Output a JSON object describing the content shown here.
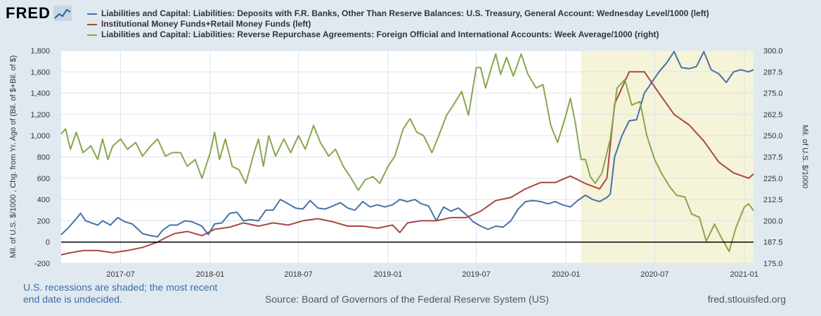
{
  "brand": {
    "logo_text": "FRED",
    "logo_icon": "line-chart-icon"
  },
  "chart_data": {
    "type": "line",
    "title": "",
    "ylabel_left": "Mil. of U.S. $/1000 , Chg. from Yr. Ago of (Bil. of $+Bil. of $)",
    "ylabel_right": "Mil. of U.S. $/1000",
    "ylim_left": [
      -200,
      1800
    ],
    "ylim_right": [
      175,
      300
    ],
    "xlim": [
      "2017-03-01",
      "2021-01-20"
    ],
    "grid": true,
    "legend_placement": "top",
    "left_ticks": [
      "-200",
      "0",
      "200",
      "400",
      "600",
      "800",
      "1,000",
      "1,200",
      "1,400",
      "1,600",
      "1,800"
    ],
    "right_ticks": [
      "175.0",
      "187.5",
      "200.0",
      "212.5",
      "225.0",
      "237.5",
      "250.0",
      "262.5",
      "275.0",
      "287.5",
      "300.0"
    ],
    "x_ticks": [
      "2017-07",
      "2018-01",
      "2018-07",
      "2019-01",
      "2019-07",
      "2020-01",
      "2020-07",
      "2021-01"
    ],
    "recession": {
      "start": "2020-02-01",
      "end": "2021-01-20"
    },
    "series": [
      {
        "name": "Liabilities and Capital: Liabilities: Deposits with F.R. Banks, Other Than Reserve Balances: U.S. Treasury, General Account: Wednesday Level/1000 (left)",
        "axis": "left",
        "color": "#4572a7",
        "points": [
          [
            "2017-03-01",
            70
          ],
          [
            "2017-03-15",
            130
          ],
          [
            "2017-04-01",
            220
          ],
          [
            "2017-04-10",
            270
          ],
          [
            "2017-04-20",
            200
          ],
          [
            "2017-05-15",
            160
          ],
          [
            "2017-05-25",
            200
          ],
          [
            "2017-06-10",
            160
          ],
          [
            "2017-06-25",
            230
          ],
          [
            "2017-07-10",
            190
          ],
          [
            "2017-07-25",
            170
          ],
          [
            "2017-08-15",
            80
          ],
          [
            "2017-09-01",
            60
          ],
          [
            "2017-09-15",
            50
          ],
          [
            "2017-09-25",
            110
          ],
          [
            "2017-10-10",
            160
          ],
          [
            "2017-10-25",
            160
          ],
          [
            "2017-11-10",
            200
          ],
          [
            "2017-11-25",
            190
          ],
          [
            "2017-12-15",
            150
          ],
          [
            "2017-12-28",
            70
          ],
          [
            "2018-01-10",
            170
          ],
          [
            "2018-01-25",
            180
          ],
          [
            "2018-02-10",
            270
          ],
          [
            "2018-02-25",
            280
          ],
          [
            "2018-03-10",
            200
          ],
          [
            "2018-03-25",
            210
          ],
          [
            "2018-04-10",
            200
          ],
          [
            "2018-04-25",
            300
          ],
          [
            "2018-05-10",
            300
          ],
          [
            "2018-05-25",
            400
          ],
          [
            "2018-06-10",
            360
          ],
          [
            "2018-06-25",
            320
          ],
          [
            "2018-07-10",
            310
          ],
          [
            "2018-07-25",
            390
          ],
          [
            "2018-08-10",
            320
          ],
          [
            "2018-08-25",
            310
          ],
          [
            "2018-09-10",
            340
          ],
          [
            "2018-09-25",
            370
          ],
          [
            "2018-10-10",
            320
          ],
          [
            "2018-10-25",
            300
          ],
          [
            "2018-11-10",
            380
          ],
          [
            "2018-11-25",
            330
          ],
          [
            "2018-12-10",
            350
          ],
          [
            "2018-12-25",
            330
          ],
          [
            "2019-01-10",
            350
          ],
          [
            "2019-01-25",
            400
          ],
          [
            "2019-02-10",
            380
          ],
          [
            "2019-02-25",
            400
          ],
          [
            "2019-03-10",
            360
          ],
          [
            "2019-03-25",
            340
          ],
          [
            "2019-04-10",
            200
          ],
          [
            "2019-04-25",
            330
          ],
          [
            "2019-05-10",
            290
          ],
          [
            "2019-05-25",
            320
          ],
          [
            "2019-06-10",
            260
          ],
          [
            "2019-06-25",
            190
          ],
          [
            "2019-07-10",
            150
          ],
          [
            "2019-07-25",
            120
          ],
          [
            "2019-08-10",
            150
          ],
          [
            "2019-08-25",
            140
          ],
          [
            "2019-09-10",
            200
          ],
          [
            "2019-09-25",
            310
          ],
          [
            "2019-10-10",
            380
          ],
          [
            "2019-10-25",
            390
          ],
          [
            "2019-11-10",
            380
          ],
          [
            "2019-11-25",
            360
          ],
          [
            "2019-12-10",
            380
          ],
          [
            "2019-12-25",
            350
          ],
          [
            "2020-01-10",
            330
          ],
          [
            "2020-01-25",
            390
          ],
          [
            "2020-02-10",
            440
          ],
          [
            "2020-02-25",
            400
          ],
          [
            "2020-03-10",
            380
          ],
          [
            "2020-03-25",
            420
          ],
          [
            "2020-04-01",
            450
          ],
          [
            "2020-04-10",
            800
          ],
          [
            "2020-04-25",
            1000
          ],
          [
            "2020-05-10",
            1140
          ],
          [
            "2020-05-25",
            1150
          ],
          [
            "2020-06-10",
            1400
          ],
          [
            "2020-06-25",
            1500
          ],
          [
            "2020-07-10",
            1600
          ],
          [
            "2020-07-25",
            1680
          ],
          [
            "2020-08-10",
            1790
          ],
          [
            "2020-08-25",
            1640
          ],
          [
            "2020-09-10",
            1630
          ],
          [
            "2020-09-25",
            1650
          ],
          [
            "2020-10-10",
            1790
          ],
          [
            "2020-10-25",
            1620
          ],
          [
            "2020-11-10",
            1580
          ],
          [
            "2020-11-25",
            1500
          ],
          [
            "2020-12-10",
            1600
          ],
          [
            "2020-12-25",
            1620
          ],
          [
            "2021-01-10",
            1600
          ],
          [
            "2021-01-20",
            1620
          ]
        ]
      },
      {
        "name": "Institutional Money Funds+Retail Money Funds (left)",
        "axis": "left",
        "color": "#aa4643",
        "points": [
          [
            "2017-03-01",
            -120
          ],
          [
            "2017-03-20",
            -100
          ],
          [
            "2017-04-15",
            -80
          ],
          [
            "2017-05-15",
            -80
          ],
          [
            "2017-06-15",
            -100
          ],
          [
            "2017-07-15",
            -80
          ],
          [
            "2017-08-15",
            -50
          ],
          [
            "2017-09-15",
            0
          ],
          [
            "2017-10-01",
            40
          ],
          [
            "2017-10-20",
            80
          ],
          [
            "2017-11-15",
            100
          ],
          [
            "2017-12-15",
            60
          ],
          [
            "2018-01-10",
            120
          ],
          [
            "2018-02-10",
            140
          ],
          [
            "2018-03-10",
            180
          ],
          [
            "2018-04-10",
            150
          ],
          [
            "2018-05-10",
            180
          ],
          [
            "2018-06-10",
            160
          ],
          [
            "2018-07-10",
            200
          ],
          [
            "2018-08-10",
            220
          ],
          [
            "2018-09-10",
            190
          ],
          [
            "2018-10-10",
            150
          ],
          [
            "2018-11-10",
            150
          ],
          [
            "2018-12-10",
            130
          ],
          [
            "2019-01-10",
            160
          ],
          [
            "2019-01-25",
            90
          ],
          [
            "2019-02-10",
            180
          ],
          [
            "2019-03-10",
            200
          ],
          [
            "2019-04-10",
            200
          ],
          [
            "2019-05-10",
            230
          ],
          [
            "2019-06-10",
            230
          ],
          [
            "2019-07-10",
            290
          ],
          [
            "2019-08-10",
            390
          ],
          [
            "2019-09-10",
            420
          ],
          [
            "2019-10-10",
            500
          ],
          [
            "2019-11-10",
            560
          ],
          [
            "2019-12-10",
            560
          ],
          [
            "2020-01-10",
            620
          ],
          [
            "2020-02-10",
            550
          ],
          [
            "2020-03-10",
            500
          ],
          [
            "2020-03-25",
            600
          ],
          [
            "2020-04-10",
            1300
          ],
          [
            "2020-05-10",
            1600
          ],
          [
            "2020-06-10",
            1600
          ],
          [
            "2020-07-10",
            1400
          ],
          [
            "2020-08-10",
            1200
          ],
          [
            "2020-09-10",
            1100
          ],
          [
            "2020-10-10",
            950
          ],
          [
            "2020-11-10",
            750
          ],
          [
            "2020-12-10",
            650
          ],
          [
            "2021-01-10",
            600
          ],
          [
            "2021-01-20",
            640
          ]
        ]
      },
      {
        "name": "Liabilities and Capital: Liabilities: Reverse Repurchase Agreements: Foreign Official and International Accounts: Week Average/1000 (right)",
        "axis": "right",
        "color": "#89a54e",
        "points": [
          [
            "2017-03-01",
            251
          ],
          [
            "2017-03-10",
            254
          ],
          [
            "2017-03-20",
            242
          ],
          [
            "2017-04-01",
            252
          ],
          [
            "2017-04-15",
            240
          ],
          [
            "2017-05-01",
            244
          ],
          [
            "2017-05-15",
            236
          ],
          [
            "2017-05-25",
            248
          ],
          [
            "2017-06-05",
            236
          ],
          [
            "2017-06-15",
            244
          ],
          [
            "2017-07-01",
            248
          ],
          [
            "2017-07-15",
            242
          ],
          [
            "2017-08-01",
            246
          ],
          [
            "2017-08-15",
            238
          ],
          [
            "2017-09-01",
            244
          ],
          [
            "2017-09-15",
            248
          ],
          [
            "2017-10-01",
            238
          ],
          [
            "2017-10-15",
            240
          ],
          [
            "2017-11-01",
            240
          ],
          [
            "2017-11-15",
            232
          ],
          [
            "2017-12-01",
            236
          ],
          [
            "2017-12-15",
            225
          ],
          [
            "2018-01-01",
            240
          ],
          [
            "2018-01-10",
            252
          ],
          [
            "2018-01-20",
            236
          ],
          [
            "2018-02-01",
            248
          ],
          [
            "2018-02-15",
            232
          ],
          [
            "2018-03-01",
            230
          ],
          [
            "2018-03-15",
            222
          ],
          [
            "2018-04-01",
            240
          ],
          [
            "2018-04-10",
            248
          ],
          [
            "2018-04-20",
            232
          ],
          [
            "2018-05-01",
            250
          ],
          [
            "2018-05-15",
            238
          ],
          [
            "2018-06-01",
            248
          ],
          [
            "2018-06-15",
            240
          ],
          [
            "2018-07-01",
            250
          ],
          [
            "2018-07-15",
            242
          ],
          [
            "2018-08-01",
            256
          ],
          [
            "2018-08-15",
            246
          ],
          [
            "2018-09-01",
            238
          ],
          [
            "2018-09-15",
            242
          ],
          [
            "2018-10-01",
            232
          ],
          [
            "2018-10-15",
            226
          ],
          [
            "2018-11-01",
            218
          ],
          [
            "2018-11-15",
            224
          ],
          [
            "2018-12-01",
            226
          ],
          [
            "2018-12-15",
            222
          ],
          [
            "2019-01-01",
            232
          ],
          [
            "2019-01-15",
            238
          ],
          [
            "2019-02-01",
            254
          ],
          [
            "2019-02-15",
            260
          ],
          [
            "2019-03-01",
            252
          ],
          [
            "2019-03-15",
            250
          ],
          [
            "2019-04-01",
            240
          ],
          [
            "2019-04-15",
            250
          ],
          [
            "2019-05-01",
            262
          ],
          [
            "2019-05-15",
            268
          ],
          [
            "2019-06-01",
            276
          ],
          [
            "2019-06-15",
            262
          ],
          [
            "2019-07-01",
            290
          ],
          [
            "2019-07-10",
            290
          ],
          [
            "2019-07-20",
            278
          ],
          [
            "2019-08-01",
            290
          ],
          [
            "2019-08-10",
            298
          ],
          [
            "2019-08-20",
            286
          ],
          [
            "2019-09-01",
            296
          ],
          [
            "2019-09-15",
            285
          ],
          [
            "2019-10-01",
            298
          ],
          [
            "2019-10-15",
            286
          ],
          [
            "2019-11-01",
            278
          ],
          [
            "2019-11-15",
            280
          ],
          [
            "2019-12-01",
            256
          ],
          [
            "2019-12-15",
            246
          ],
          [
            "2020-01-01",
            262
          ],
          [
            "2020-01-10",
            272
          ],
          [
            "2020-01-20",
            258
          ],
          [
            "2020-02-01",
            236
          ],
          [
            "2020-02-10",
            236
          ],
          [
            "2020-02-20",
            226
          ],
          [
            "2020-03-01",
            222
          ],
          [
            "2020-03-15",
            228
          ],
          [
            "2020-04-01",
            248
          ],
          [
            "2020-04-15",
            278
          ],
          [
            "2020-05-01",
            283
          ],
          [
            "2020-05-15",
            268
          ],
          [
            "2020-06-01",
            270
          ],
          [
            "2020-06-15",
            250
          ],
          [
            "2020-07-01",
            236
          ],
          [
            "2020-07-15",
            228
          ],
          [
            "2020-08-01",
            220
          ],
          [
            "2020-08-15",
            215
          ],
          [
            "2020-09-01",
            214
          ],
          [
            "2020-09-15",
            204
          ],
          [
            "2020-10-01",
            202
          ],
          [
            "2020-10-15",
            188
          ],
          [
            "2020-11-01",
            198
          ],
          [
            "2020-11-15",
            190
          ],
          [
            "2020-12-01",
            182
          ],
          [
            "2020-12-15",
            196
          ],
          [
            "2021-01-01",
            208
          ],
          [
            "2021-01-10",
            210
          ],
          [
            "2021-01-20",
            206
          ]
        ]
      }
    ]
  },
  "footer": {
    "note_line1": "U.S. recessions are shaded; the most recent",
    "note_line2": "end date is undecided.",
    "source": "Source: Board of Governors of the Federal Reserve System (US)",
    "site": "fred.stlouisfed.org"
  }
}
